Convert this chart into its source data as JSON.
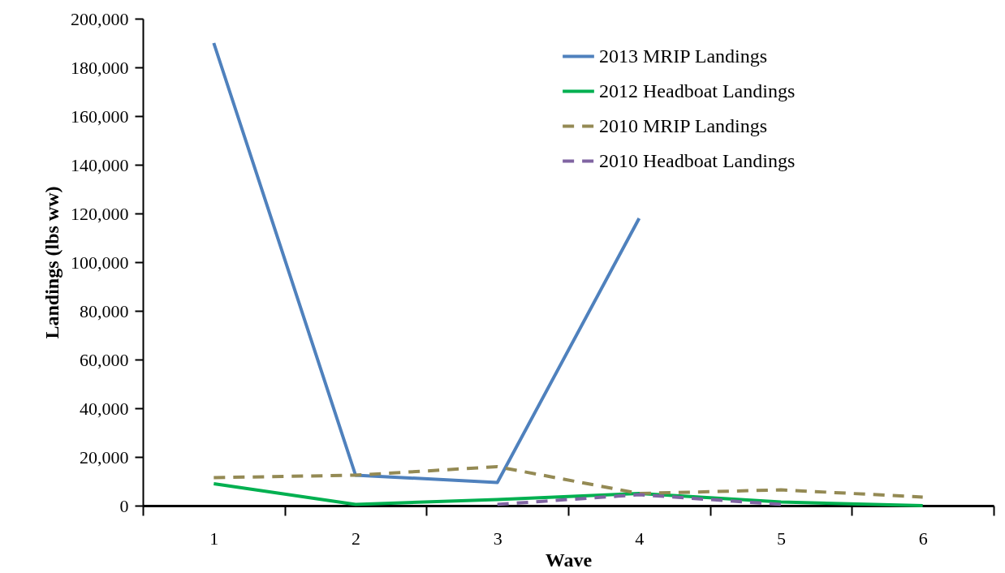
{
  "chart_data": {
    "type": "line",
    "xlabel": "Wave",
    "ylabel": "Landings (lbs ww)",
    "categories": [
      "1",
      "2",
      "3",
      "4",
      "5",
      "6"
    ],
    "ylim": [
      0,
      200000
    ],
    "yticks": [
      {
        "value": 0,
        "label": "0"
      },
      {
        "value": 20000,
        "label": "20,000"
      },
      {
        "value": 40000,
        "label": "40,000"
      },
      {
        "value": 60000,
        "label": "60,000"
      },
      {
        "value": 80000,
        "label": "80,000"
      },
      {
        "value": 100000,
        "label": "100,000"
      },
      {
        "value": 120000,
        "label": "120,000"
      },
      {
        "value": 140000,
        "label": "140,000"
      },
      {
        "value": 160000,
        "label": "160,000"
      },
      {
        "value": 180000,
        "label": "180,000"
      },
      {
        "value": 200000,
        "label": "200,000"
      }
    ],
    "grid": false,
    "legend": "top right",
    "marker": "none",
    "series": [
      {
        "name": "2013 MRIP Landings",
        "color": "#4f81bd",
        "line_style": "solid",
        "values": [
          190000,
          12500,
          9500,
          118000,
          null,
          null
        ]
      },
      {
        "name": "2012 Headboat Landings",
        "color": "#00b050",
        "line_style": "solid",
        "values": [
          9000,
          500,
          2500,
          5000,
          1500,
          0
        ]
      },
      {
        "name": "2010 MRIP Landings",
        "color": "#948a54",
        "line_style": "dashed",
        "values": [
          11500,
          12500,
          16000,
          5000,
          6500,
          3500
        ]
      },
      {
        "name": "2010 Headboat Landings",
        "color": "#8064a2",
        "line_style": "dashed",
        "values": [
          null,
          null,
          500,
          4500,
          500,
          null
        ]
      }
    ]
  }
}
